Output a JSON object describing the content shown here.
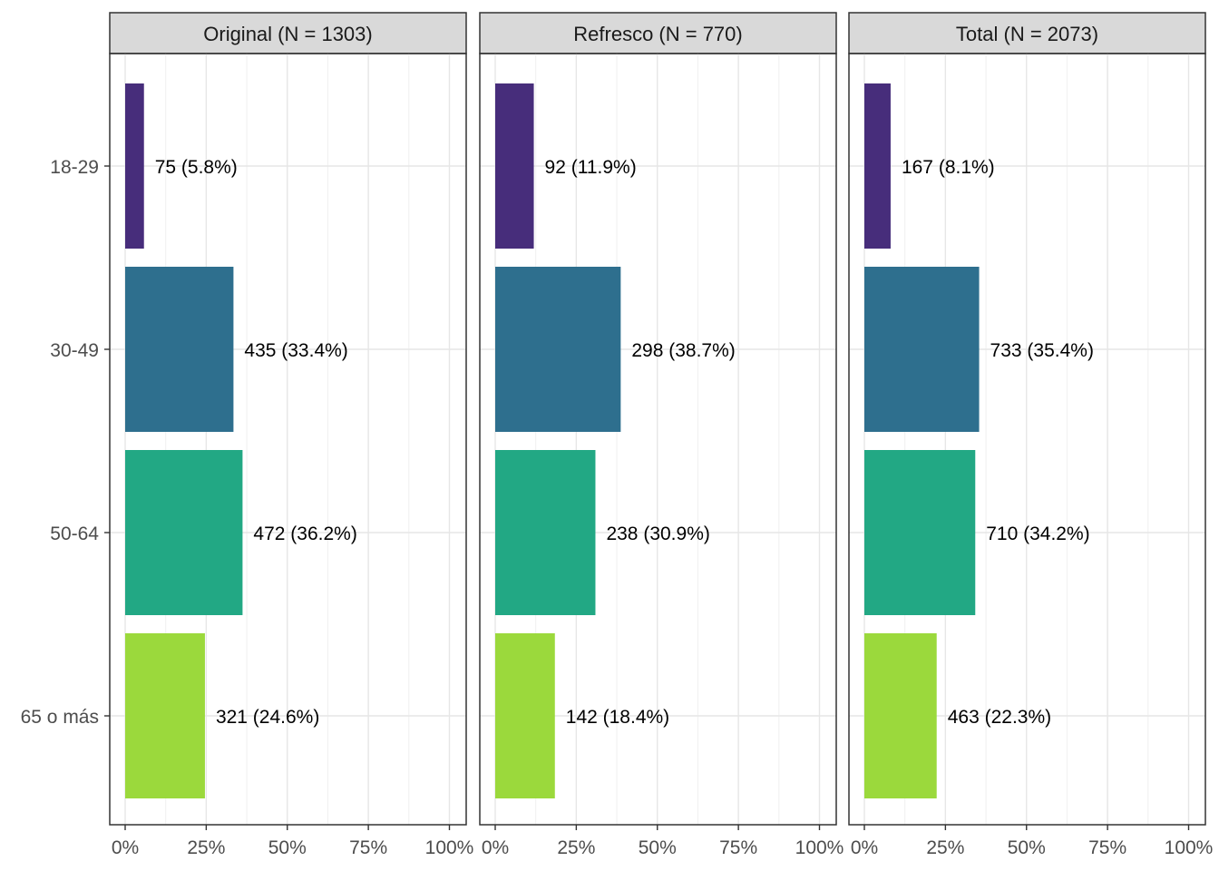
{
  "chart_data": {
    "type": "bar",
    "orientation": "horizontal",
    "categories": [
      "18-29",
      "30-49",
      "50-64",
      "65 o más"
    ],
    "x_ticks": [
      "0%",
      "25%",
      "50%",
      "75%",
      "100%"
    ],
    "xlim": [
      0,
      100
    ],
    "grid": true,
    "colors": [
      "#472D7B",
      "#2E6F8E",
      "#22A884",
      "#9BD93C"
    ],
    "panels": [
      {
        "title": "Original (N = 1303)",
        "values": [
          5.8,
          33.4,
          36.2,
          24.6
        ],
        "labels": [
          "75 (5.8%)",
          "435 (33.4%)",
          "472 (36.2%)",
          "321 (24.6%)"
        ]
      },
      {
        "title": "Refresco (N = 770)",
        "values": [
          11.9,
          38.7,
          30.9,
          18.4
        ],
        "labels": [
          "92 (11.9%)",
          "298 (38.7%)",
          "238 (30.9%)",
          "142 (18.4%)"
        ]
      },
      {
        "title": "Total (N = 2073)",
        "values": [
          8.1,
          35.4,
          34.2,
          22.3
        ],
        "labels": [
          "167 (8.1%)",
          "733 (35.4%)",
          "710 (34.2%)",
          "463 (22.3%)"
        ]
      }
    ]
  }
}
